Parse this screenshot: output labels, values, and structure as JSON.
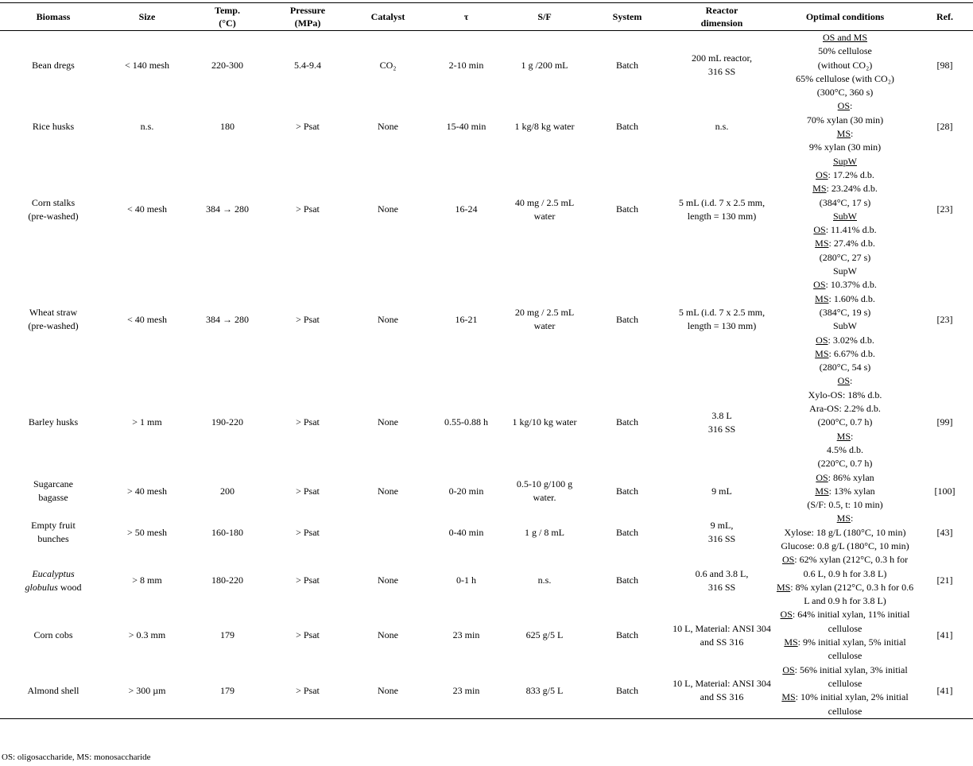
{
  "table": {
    "header": [
      "Biomass",
      "Size",
      [
        "Temp.",
        "(°C)"
      ],
      [
        "Pressure",
        "(MPa)"
      ],
      "Catalyst",
      "τ",
      "S/F",
      "System",
      [
        "Reactor",
        "dimension"
      ],
      "Optimal conditions",
      "Ref."
    ],
    "rows": [
      [
        "Bean dregs",
        "< 140 mesh",
        "220-300",
        "5.4-9.4",
        "CO₂",
        "2-10 min",
        "1 g /200 mL",
        "Batch",
        [
          "200 mL reactor,",
          "316 SS"
        ],
        [
          [
            {
              "u": "OS and MS"
            }
          ],
          "50% cellulose",
          "(without CO₂)",
          "65% cellulose (with CO₂)",
          "(300°C, 360 s)"
        ],
        "[98]"
      ],
      [
        "Rice husks",
        "n.s.",
        "180",
        "> Psat",
        "None",
        "15-40 min",
        "1 kg/8 kg water",
        "Batch",
        "n.s.",
        [
          [
            {
              "u": "OS"
            },
            ":"
          ],
          "70% xylan (30 min)",
          [
            {
              "u": "MS"
            },
            ":"
          ],
          "9% xylan (30 min)"
        ],
        "[28]"
      ],
      [
        [
          "Corn stalks",
          "(pre-washed)"
        ],
        "< 40 mesh",
        "384 → 280",
        "> Psat",
        "None",
        "16-24",
        "40 mg / 2.5 mL water",
        "Batch",
        "5 mL (i.d. 7 x 2.5 mm, length = 130 mm)",
        [
          [
            {
              "u": "SupW"
            }
          ],
          [
            {
              "u": "OS"
            },
            ": 17.2% d.b."
          ],
          [
            {
              "u": "MS"
            },
            ": 23.24% d.b."
          ],
          "(384°C, 17 s)",
          [
            {
              "u": "SubW"
            }
          ],
          [
            {
              "u": "OS"
            },
            ": 11.41% d.b."
          ],
          [
            {
              "u": "MS"
            },
            ": 27.4% d.b."
          ],
          "(280°C, 27 s)"
        ],
        "[23]"
      ],
      [
        [
          "Wheat straw",
          "(pre-washed)"
        ],
        "< 40 mesh",
        "384 → 280",
        "> Psat",
        "None",
        "16-21",
        "20 mg / 2.5 mL water",
        "Batch",
        "5 mL (i.d. 7 x 2.5 mm, length = 130 mm)",
        [
          "SupW",
          [
            {
              "u": "OS"
            },
            ": 10.37% d.b."
          ],
          [
            {
              "u": "MS"
            },
            ": 1.60% d.b."
          ],
          "(384°C, 19 s)",
          "SubW",
          [
            {
              "u": "OS"
            },
            ": 3.02% d.b."
          ],
          [
            {
              "u": "MS"
            },
            ": 6.67% d.b."
          ],
          "(280°C, 54 s)"
        ],
        "[23]"
      ],
      [
        "Barley husks",
        "> 1 mm",
        "190-220",
        "> Psat",
        "None",
        "0.55-0.88 h",
        "1 kg/10 kg water",
        "Batch",
        [
          "3.8 L",
          "316 SS"
        ],
        [
          [
            {
              "u": "OS"
            },
            ":"
          ],
          "Xylo-OS: 18% d.b.",
          "Ara-OS: 2.2% d.b.",
          "(200°C, 0.7 h)",
          [
            {
              "u": "MS"
            },
            ":"
          ],
          "4.5% d.b.",
          "(220°C, 0.7 h)"
        ],
        "[99]"
      ],
      [
        [
          "Sugarcane",
          "bagasse"
        ],
        "> 40 mesh",
        "200",
        "> Psat",
        "None",
        "0-20 min",
        "0.5-10 g/100 g water.",
        "Batch",
        "9 mL",
        [
          [
            {
              "u": "OS"
            },
            ": 86% xylan"
          ],
          [
            {
              "u": "MS"
            },
            ": 13% xylan"
          ],
          "(S/F: 0.5, t: 10 min)"
        ],
        "[100]"
      ],
      [
        [
          "Empty fruit",
          "bunches"
        ],
        "> 50 mesh",
        "160-180",
        "> Psat",
        null,
        "0-40 min",
        "1 g / 8 mL",
        "Batch",
        [
          "9 mL,",
          "316 SS"
        ],
        [
          [
            {
              "u": "MS"
            },
            ":"
          ],
          "Xylose: 18 g/L (180°C, 10 min)",
          "Glucose: 0.8 g/L (180°C, 10 min)"
        ],
        "[43]"
      ],
      [
        [
          [
            {
              "i": "Eucalyptus"
            }
          ],
          [
            {
              "i": "globulus"
            },
            " wood"
          ]
        ],
        "> 8 mm",
        "180-220",
        "> Psat",
        "None",
        "0-1 h",
        "n.s.",
        "Batch",
        [
          "0.6 and 3.8 L,",
          "316 SS"
        ],
        [
          [
            {
              "u": "OS"
            },
            ": 62% xylan (212°C, 0.3 h for 0.6 L, 0.9 h for 3.8 L)"
          ],
          [
            {
              "u": "MS"
            },
            ": 8% xylan (212°C, 0.3 h for 0.6 L and 0.9 h for 3.8 L)"
          ]
        ],
        "[21]"
      ],
      [
        "Corn cobs",
        "> 0.3 mm",
        "179",
        "> Psat",
        "None",
        "23 min",
        "625 g/5 L",
        "Batch",
        "10 L, Material: ANSI 304 and SS 316",
        [
          [
            {
              "u": "OS"
            },
            ": 64% initial xylan, 11% initial cellulose"
          ],
          [
            {
              "u": "MS"
            },
            ": 9% initial xylan, 5% initial cellulose"
          ]
        ],
        "[41]"
      ],
      [
        "Almond shell",
        "> 300 µm",
        "179",
        "> Psat",
        "None",
        "23 min",
        "833 g/5 L",
        "Batch",
        "10 L, Material: ANSI 304 and SS 316",
        [
          [
            {
              "u": "OS"
            },
            ": 56% initial xylan, 3% initial cellulose"
          ],
          [
            {
              "u": "MS"
            },
            ": 10% initial xylan, 2% initial cellulose"
          ]
        ],
        "[41]"
      ]
    ]
  },
  "footnote": "OS: oligosaccharide, MS: monosaccharide"
}
